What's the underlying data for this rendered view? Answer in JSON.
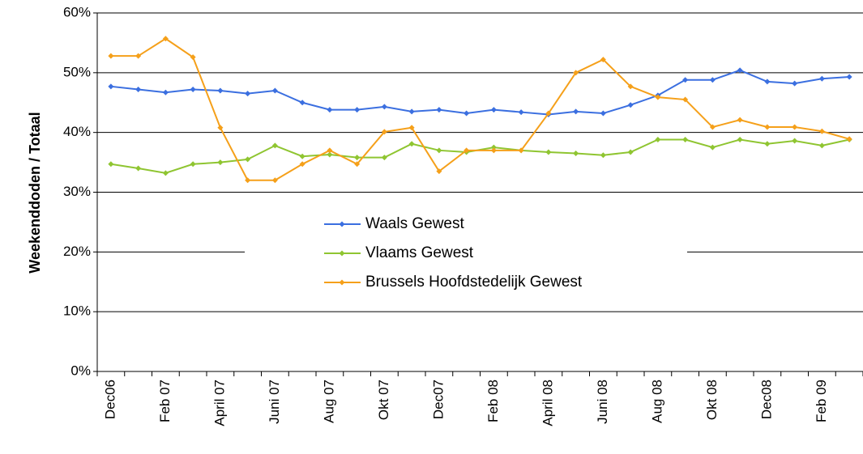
{
  "chart_data": {
    "type": "line",
    "y_label": "Weekenddoden / Totaal",
    "categories": [
      "Dec06",
      null,
      "Feb 07",
      null,
      "April 07",
      null,
      "Juni 07",
      null,
      "Aug 07",
      null,
      "Okt 07",
      null,
      "Dec07",
      null,
      "Feb 08",
      null,
      "April 08",
      null,
      "Juni 08",
      null,
      "Aug 08",
      null,
      "Okt 08",
      null,
      "Dec08",
      null,
      "Feb 09",
      null
    ],
    "series": [
      {
        "name": "Waals Gewest",
        "color": "#3b6fe0",
        "values": [
          47.7,
          47.2,
          46.7,
          47.2,
          47.0,
          46.5,
          47.0,
          45.0,
          43.8,
          43.8,
          44.3,
          43.5,
          43.8,
          43.2,
          43.8,
          43.4,
          43.0,
          43.5,
          43.2,
          44.6,
          46.2,
          48.8,
          48.8,
          50.4,
          48.5,
          48.2,
          49.0,
          49.3
        ]
      },
      {
        "name": "Vlaams Gewest",
        "color": "#8fc531",
        "values": [
          34.7,
          34.0,
          33.2,
          34.7,
          35.0,
          35.5,
          37.8,
          36.0,
          36.3,
          35.8,
          35.8,
          38.1,
          37.0,
          36.7,
          37.5,
          37.0,
          36.7,
          36.5,
          36.2,
          36.7,
          38.8,
          38.8,
          37.5,
          38.8,
          38.1,
          38.6,
          37.8,
          38.8
        ]
      },
      {
        "name": "Brussels Hoofdstedelijk Gewest",
        "color": "#f5a01a",
        "values": [
          52.8,
          52.8,
          55.7,
          52.6,
          40.8,
          32.0,
          32.0,
          34.7,
          37.0,
          34.7,
          40.1,
          40.8,
          33.5,
          37.0,
          37.0,
          37.0,
          43.2,
          50.0,
          52.2,
          47.7,
          45.9,
          45.5,
          40.9,
          42.1,
          40.9,
          40.9,
          40.2,
          38.9
        ]
      }
    ],
    "ylim": [
      0,
      60
    ],
    "yticks": [
      {
        "value": 0,
        "label": "0%"
      },
      {
        "value": 10,
        "label": "10%"
      },
      {
        "value": 20,
        "label": "20%"
      },
      {
        "value": 30,
        "label": "30%"
      },
      {
        "value": 40,
        "label": "40%"
      },
      {
        "value": 50,
        "label": "50%"
      },
      {
        "value": 60,
        "label": "60%"
      }
    ],
    "grid": true,
    "legend": "center"
  }
}
